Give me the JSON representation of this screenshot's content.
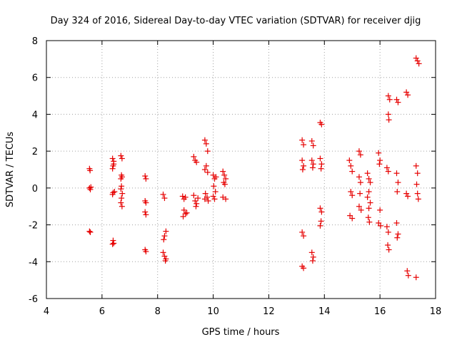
{
  "chart_data": {
    "type": "scatter",
    "title": "Day 324 of 2016, Sidereal Day-to-day VTEC variation (SDTVAR) for receiver djig",
    "xlabel": "GPS time / hours",
    "ylabel": "SDTVAR / TECUs",
    "xlim": [
      4,
      18
    ],
    "ylim": [
      -6,
      8
    ],
    "xticks": [
      4,
      6,
      8,
      10,
      12,
      14,
      16,
      18
    ],
    "yticks": [
      -6,
      -4,
      -2,
      0,
      2,
      4,
      6,
      8
    ],
    "grid": true,
    "marker": "+",
    "color": "#e60000",
    "series": [
      {
        "name": "SDTVAR",
        "points": [
          [
            5.55,
            1.05
          ],
          [
            5.57,
            0.95
          ],
          [
            5.55,
            0.0
          ],
          [
            5.58,
            -0.08
          ],
          [
            5.6,
            0.05
          ],
          [
            5.55,
            -2.35
          ],
          [
            5.58,
            -2.4
          ],
          [
            6.38,
            1.6
          ],
          [
            6.42,
            1.45
          ],
          [
            6.4,
            1.2
          ],
          [
            6.38,
            1.05
          ],
          [
            6.42,
            1.3
          ],
          [
            6.4,
            -0.25
          ],
          [
            6.38,
            -0.35
          ],
          [
            6.45,
            -0.2
          ],
          [
            6.4,
            -2.85
          ],
          [
            6.42,
            -3.0
          ],
          [
            6.38,
            -3.05
          ],
          [
            6.68,
            1.75
          ],
          [
            6.72,
            1.6
          ],
          [
            6.7,
            0.7
          ],
          [
            6.68,
            0.5
          ],
          [
            6.72,
            0.6
          ],
          [
            6.7,
            0.1
          ],
          [
            6.68,
            -0.05
          ],
          [
            6.73,
            -0.3
          ],
          [
            6.7,
            -0.55
          ],
          [
            6.68,
            -0.8
          ],
          [
            6.72,
            -1.0
          ],
          [
            7.55,
            0.65
          ],
          [
            7.58,
            0.5
          ],
          [
            7.55,
            -0.7
          ],
          [
            7.58,
            -0.8
          ],
          [
            7.55,
            -1.3
          ],
          [
            7.58,
            -1.45
          ],
          [
            7.55,
            -3.35
          ],
          [
            7.58,
            -3.45
          ],
          [
            8.2,
            -0.35
          ],
          [
            8.25,
            -0.55
          ],
          [
            8.3,
            -2.35
          ],
          [
            8.25,
            -2.6
          ],
          [
            8.22,
            -2.8
          ],
          [
            8.2,
            -3.5
          ],
          [
            8.25,
            -3.7
          ],
          [
            8.3,
            -3.85
          ],
          [
            8.28,
            -3.95
          ],
          [
            8.9,
            -0.45
          ],
          [
            8.95,
            -0.6
          ],
          [
            9.0,
            -0.5
          ],
          [
            8.95,
            -1.2
          ],
          [
            9.0,
            -1.4
          ],
          [
            8.92,
            -1.55
          ],
          [
            9.05,
            -1.35
          ],
          [
            9.3,
            1.7
          ],
          [
            9.35,
            1.5
          ],
          [
            9.4,
            1.4
          ],
          [
            9.3,
            -0.4
          ],
          [
            9.35,
            -0.7
          ],
          [
            9.4,
            -0.85
          ],
          [
            9.45,
            -0.55
          ],
          [
            9.38,
            -1.0
          ],
          [
            9.7,
            2.6
          ],
          [
            9.75,
            2.4
          ],
          [
            9.8,
            2.0
          ],
          [
            9.75,
            1.2
          ],
          [
            9.7,
            1.0
          ],
          [
            9.8,
            0.85
          ],
          [
            9.72,
            -0.3
          ],
          [
            9.78,
            -0.5
          ],
          [
            9.82,
            -0.7
          ],
          [
            9.7,
            -0.6
          ],
          [
            10.0,
            0.7
          ],
          [
            10.05,
            0.5
          ],
          [
            10.1,
            0.6
          ],
          [
            10.02,
            0.1
          ],
          [
            10.08,
            -0.2
          ],
          [
            10.0,
            -0.45
          ],
          [
            10.05,
            -0.6
          ],
          [
            10.35,
            0.9
          ],
          [
            10.4,
            0.7
          ],
          [
            10.45,
            0.5
          ],
          [
            10.38,
            0.3
          ],
          [
            10.42,
            0.2
          ],
          [
            10.35,
            -0.5
          ],
          [
            10.45,
            -0.6
          ],
          [
            13.2,
            2.6
          ],
          [
            13.25,
            2.35
          ],
          [
            13.2,
            1.5
          ],
          [
            13.25,
            1.2
          ],
          [
            13.22,
            1.0
          ],
          [
            13.2,
            -2.4
          ],
          [
            13.25,
            -2.6
          ],
          [
            13.2,
            -4.25
          ],
          [
            13.25,
            -4.35
          ],
          [
            13.55,
            2.55
          ],
          [
            13.6,
            2.3
          ],
          [
            13.55,
            1.5
          ],
          [
            13.6,
            1.3
          ],
          [
            13.58,
            1.1
          ],
          [
            13.55,
            -3.5
          ],
          [
            13.6,
            -3.75
          ],
          [
            13.58,
            -3.95
          ],
          [
            13.85,
            3.55
          ],
          [
            13.9,
            3.45
          ],
          [
            13.85,
            1.6
          ],
          [
            13.9,
            1.3
          ],
          [
            13.88,
            1.05
          ],
          [
            13.85,
            -1.1
          ],
          [
            13.9,
            -1.3
          ],
          [
            13.88,
            -1.8
          ],
          [
            13.85,
            -2.05
          ],
          [
            14.9,
            1.5
          ],
          [
            14.95,
            1.2
          ],
          [
            15.0,
            0.9
          ],
          [
            14.95,
            -0.2
          ],
          [
            15.0,
            -0.4
          ],
          [
            14.92,
            -1.5
          ],
          [
            15.0,
            -1.65
          ],
          [
            15.25,
            2.0
          ],
          [
            15.3,
            1.8
          ],
          [
            15.25,
            0.6
          ],
          [
            15.3,
            0.3
          ],
          [
            15.28,
            -0.3
          ],
          [
            15.25,
            -1.0
          ],
          [
            15.32,
            -1.2
          ],
          [
            15.55,
            0.8
          ],
          [
            15.6,
            0.5
          ],
          [
            15.65,
            0.3
          ],
          [
            15.6,
            -0.2
          ],
          [
            15.55,
            -0.5
          ],
          [
            15.65,
            -0.8
          ],
          [
            15.6,
            -1.1
          ],
          [
            15.58,
            -1.6
          ],
          [
            15.62,
            -1.85
          ],
          [
            15.95,
            1.9
          ],
          [
            16.0,
            1.5
          ],
          [
            15.98,
            1.3
          ],
          [
            16.0,
            -1.2
          ],
          [
            15.95,
            -1.9
          ],
          [
            16.02,
            -2.05
          ],
          [
            16.25,
            1.1
          ],
          [
            16.3,
            0.9
          ],
          [
            16.25,
            -2.1
          ],
          [
            16.3,
            -2.4
          ],
          [
            16.28,
            -3.1
          ],
          [
            16.32,
            -3.35
          ],
          [
            16.3,
            5.0
          ],
          [
            16.35,
            4.8
          ],
          [
            16.3,
            4.0
          ],
          [
            16.32,
            3.7
          ],
          [
            16.6,
            4.8
          ],
          [
            16.65,
            4.65
          ],
          [
            16.6,
            0.8
          ],
          [
            16.65,
            0.3
          ],
          [
            16.62,
            -0.2
          ],
          [
            16.6,
            -1.9
          ],
          [
            16.65,
            -2.5
          ],
          [
            16.62,
            -2.7
          ],
          [
            16.95,
            5.2
          ],
          [
            17.0,
            5.05
          ],
          [
            16.95,
            -0.3
          ],
          [
            17.0,
            -0.45
          ],
          [
            16.98,
            -4.5
          ],
          [
            17.02,
            -4.75
          ],
          [
            17.3,
            7.05
          ],
          [
            17.35,
            6.9
          ],
          [
            17.4,
            6.75
          ],
          [
            17.3,
            1.2
          ],
          [
            17.35,
            0.8
          ],
          [
            17.32,
            0.2
          ],
          [
            17.35,
            -0.3
          ],
          [
            17.38,
            -0.6
          ],
          [
            17.3,
            -4.85
          ]
        ]
      }
    ]
  }
}
